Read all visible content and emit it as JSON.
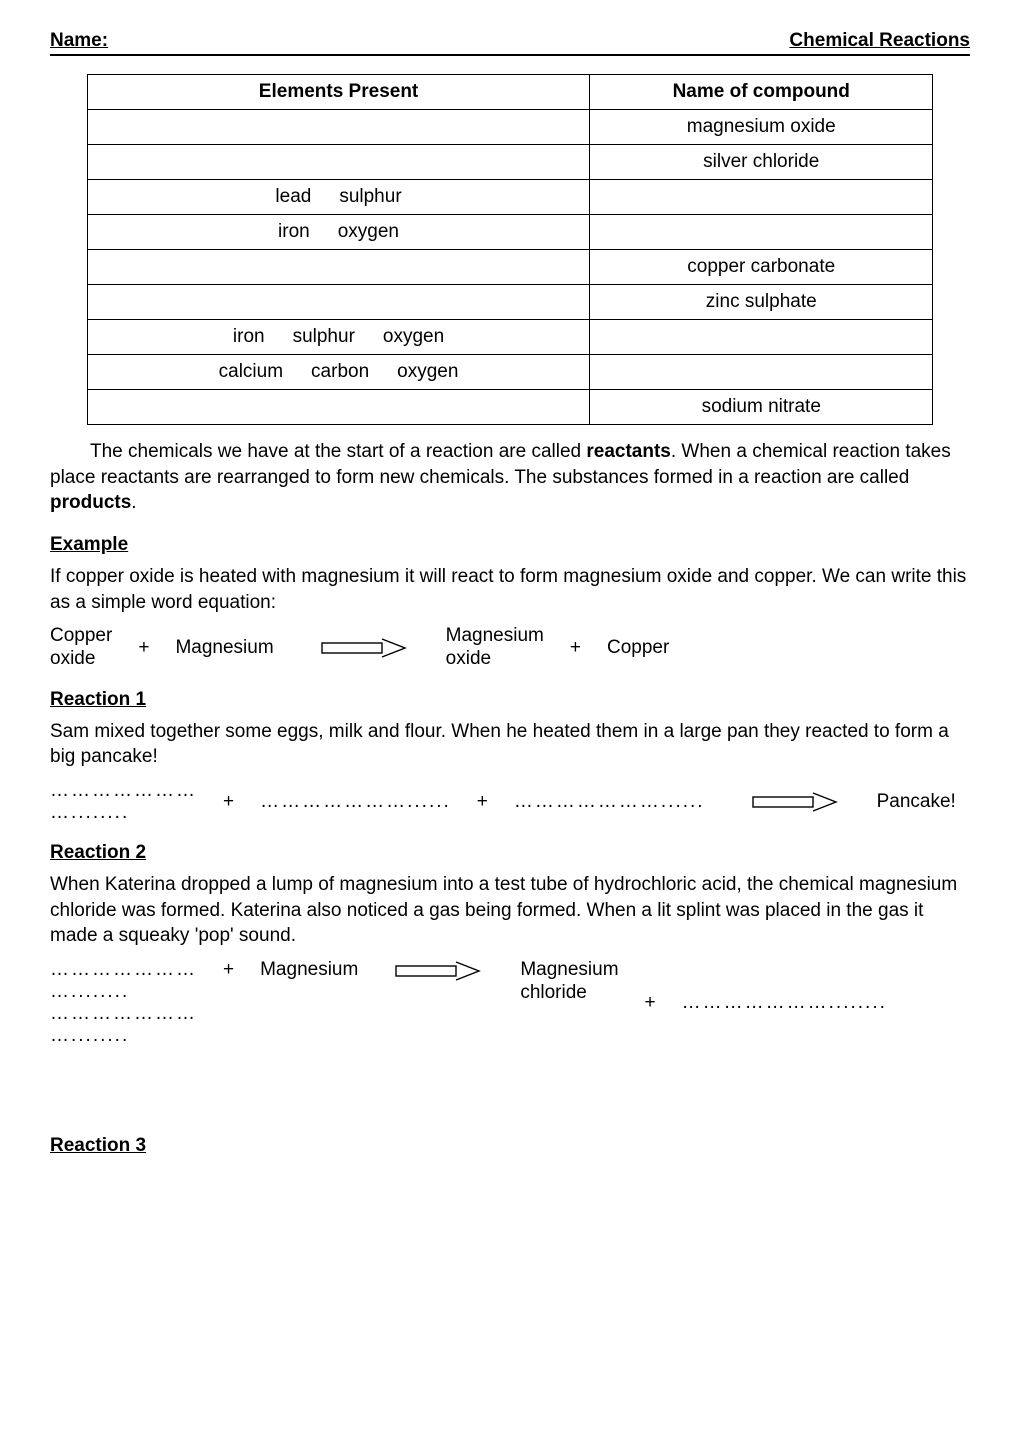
{
  "header": {
    "left": "Name:",
    "right": "Chemical Reactions"
  },
  "table": {
    "headers": [
      "Elements Present",
      "Name of compound"
    ],
    "rows": [
      {
        "elements": [],
        "compound": "magnesium oxide"
      },
      {
        "elements": [],
        "compound": "silver chloride"
      },
      {
        "elements": [
          "lead",
          "sulphur"
        ],
        "compound": ""
      },
      {
        "elements": [
          "iron",
          "oxygen"
        ],
        "compound": ""
      },
      {
        "elements": [],
        "compound": "copper carbonate"
      },
      {
        "elements": [],
        "compound": "zinc sulphate"
      },
      {
        "elements": [
          "iron",
          "sulphur",
          "oxygen"
        ],
        "compound": ""
      },
      {
        "elements": [
          "calcium",
          "carbon",
          "oxygen"
        ],
        "compound": ""
      },
      {
        "elements": [],
        "compound": "sodium nitrate"
      }
    ]
  },
  "intro": {
    "line1_a": "The chemicals we have at the start of a reaction are called ",
    "line1_b": "reactants",
    "line1_c": ".  When a chemical reaction takes place reactants are rearranged to form new chemicals. The substances formed in a reaction are called ",
    "line1_d": "products",
    "line1_e": "."
  },
  "example": {
    "heading": "Example",
    "text": "If copper oxide is heated with magnesium it will react to form magnesium oxide and copper. We can write this as a simple word equation:",
    "eq": {
      "r1_a": "Copper",
      "r1_b": "oxide",
      "plus1": "+",
      "r2": "Magnesium",
      "p1_a": "Magnesium",
      "p1_b": "oxide",
      "plus2": "+",
      "p2": "Copper"
    }
  },
  "reaction1": {
    "heading": "Reaction 1",
    "text": "Sam mixed together some eggs, milk and flour. When he heated them in a large pan they reacted to form a big pancake!",
    "eq": {
      "blank1": "…………………",
      "blank1b": "…........",
      "plus1": "+",
      "blank2": "…………………......",
      "plus2": "+",
      "blank3": "…………………......",
      "product": "Pancake!"
    }
  },
  "reaction2": {
    "heading": "Reaction 2",
    "text": "When Katerina dropped a lump of magnesium into a test tube of hydrochloric acid, the chemical magnesium chloride was formed. Katerina also noticed a gas being formed. When a lit splint was placed in the gas it made a squeaky 'pop' sound.",
    "eq": {
      "blank1a": "…………………",
      "blank1b": "…........",
      "blank1c": "…………………",
      "blank1d": "…........",
      "plus1": "+",
      "r2": "Magnesium",
      "p1_a": "Magnesium",
      "p1_b": "chloride",
      "plus2": "+",
      "blank2": "…………………........"
    }
  },
  "reaction3": {
    "heading": "Reaction 3"
  },
  "arrow": {
    "stroke": "#000000",
    "stroke_width": 1.4
  }
}
